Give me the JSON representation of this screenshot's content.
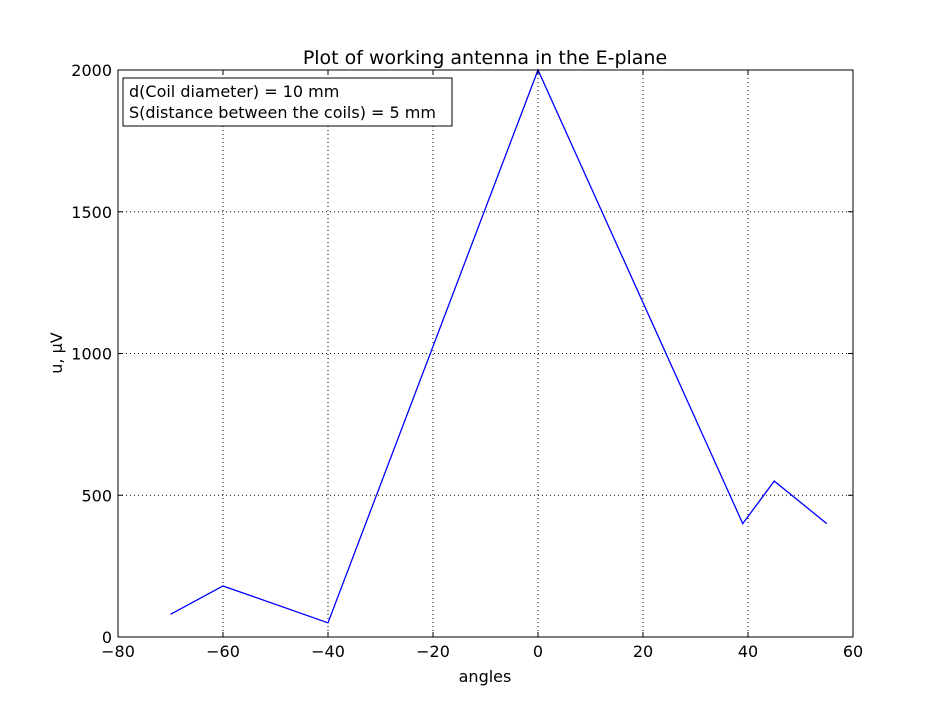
{
  "chart_data": {
    "type": "line",
    "title": "Plot of working antenna in the E-plane",
    "xlabel": "angles",
    "ylabel": "u, μV",
    "xlim": [
      -80,
      60
    ],
    "ylim": [
      0,
      2000
    ],
    "xticks": [
      -80,
      -60,
      -40,
      -20,
      0,
      20,
      40,
      60
    ],
    "xtick_labels": [
      "−80",
      "−60",
      "−40",
      "−20",
      "0",
      "20",
      "40",
      "60"
    ],
    "yticks": [
      0,
      500,
      1000,
      1500,
      2000
    ],
    "ytick_labels": [
      "0",
      "500",
      "1000",
      "1500",
      "2000"
    ],
    "grid": true,
    "series": [
      {
        "color": "#0000ff",
        "x": [
          -70,
          -60,
          -40,
          0,
          39,
          45,
          55
        ],
        "y": [
          80,
          180,
          50,
          2000,
          400,
          550,
          400
        ]
      }
    ],
    "annotation": {
      "lines": [
        "d(Coil diameter) = 10 mm",
        "S(distance between the coils) = 5 mm"
      ],
      "placement": "top-left"
    }
  }
}
